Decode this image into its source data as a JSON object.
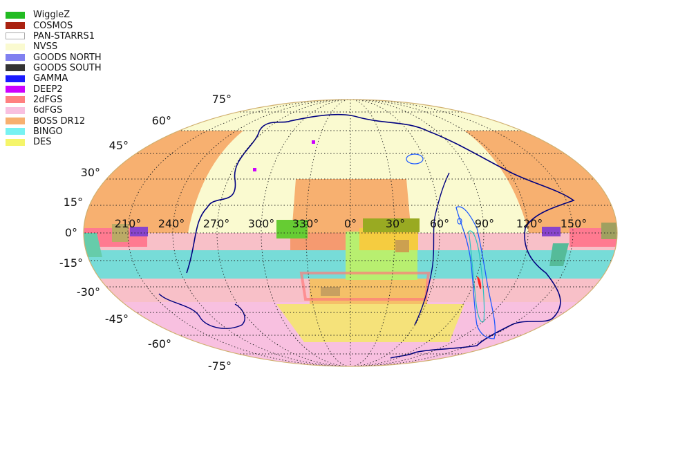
{
  "legend": [
    {
      "label": "WiggleZ",
      "color": "#22bb22",
      "survey": "wigglez"
    },
    {
      "label": "COSMOS",
      "color": "#aa2211",
      "survey": "cosmos"
    },
    {
      "label": "PAN-STARRS1",
      "color": "#ffffff",
      "border": "#aaaaaa",
      "survey": "pan-starrs1"
    },
    {
      "label": "NVSS",
      "color": "#fafad0",
      "survey": "nvss"
    },
    {
      "label": "GOODS NORTH",
      "color": "#8080f0",
      "survey": "goods-north"
    },
    {
      "label": "GOODS SOUTH",
      "color": "#333333",
      "survey": "goods-south"
    },
    {
      "label": "GAMMA",
      "color": "#1a1aff",
      "survey": "gamma"
    },
    {
      "label": "DEEP2",
      "color": "#cc00ff",
      "survey": "deep2"
    },
    {
      "label": "2dFGS",
      "color": "#ff8080",
      "survey": "2dfgs"
    },
    {
      "label": "6dFGS",
      "color": "#f8c0e0",
      "survey": "6dfgs"
    },
    {
      "label": "BOSS DR12",
      "color": "#f7b070",
      "survey": "boss-dr12"
    },
    {
      "label": "BINGO",
      "color": "#77f2f2",
      "survey": "bingo"
    },
    {
      "label": "DES",
      "color": "#f5f56a",
      "survey": "des"
    }
  ],
  "longitude_labels": [
    "210°",
    "240°",
    "270°",
    "300°",
    "330°",
    "0°",
    "30°",
    "60°",
    "90°",
    "120°",
    "150°"
  ],
  "latitude_labels": [
    "75°",
    "60°",
    "45°",
    "30°",
    "15°",
    "0°",
    "-15°",
    "-30°",
    "-45°",
    "-60°",
    "-75°"
  ],
  "projection": "mollweide",
  "graticule_step_deg": 15,
  "regions": {
    "nvss_lat_range": [
      -40,
      90
    ],
    "sixdf_lat_range": [
      -90,
      -5
    ],
    "bingo_lat_range": [
      -25,
      -10
    ],
    "boss_caps": [
      {
        "center_lon": 187,
        "lat_range": [
          0,
          60
        ]
      },
      {
        "center_lon": 360,
        "lon_span": 60,
        "lat_range": [
          0,
          35
        ]
      }
    ],
    "des_lon_span": [
      -60,
      100
    ],
    "des_lat_range": [
      -65,
      -2
    ]
  },
  "colors": {
    "contour_outer": "#000080",
    "contour_inner": "#1e5aff",
    "map_edge": "#d0b070",
    "grid": "#222222"
  }
}
